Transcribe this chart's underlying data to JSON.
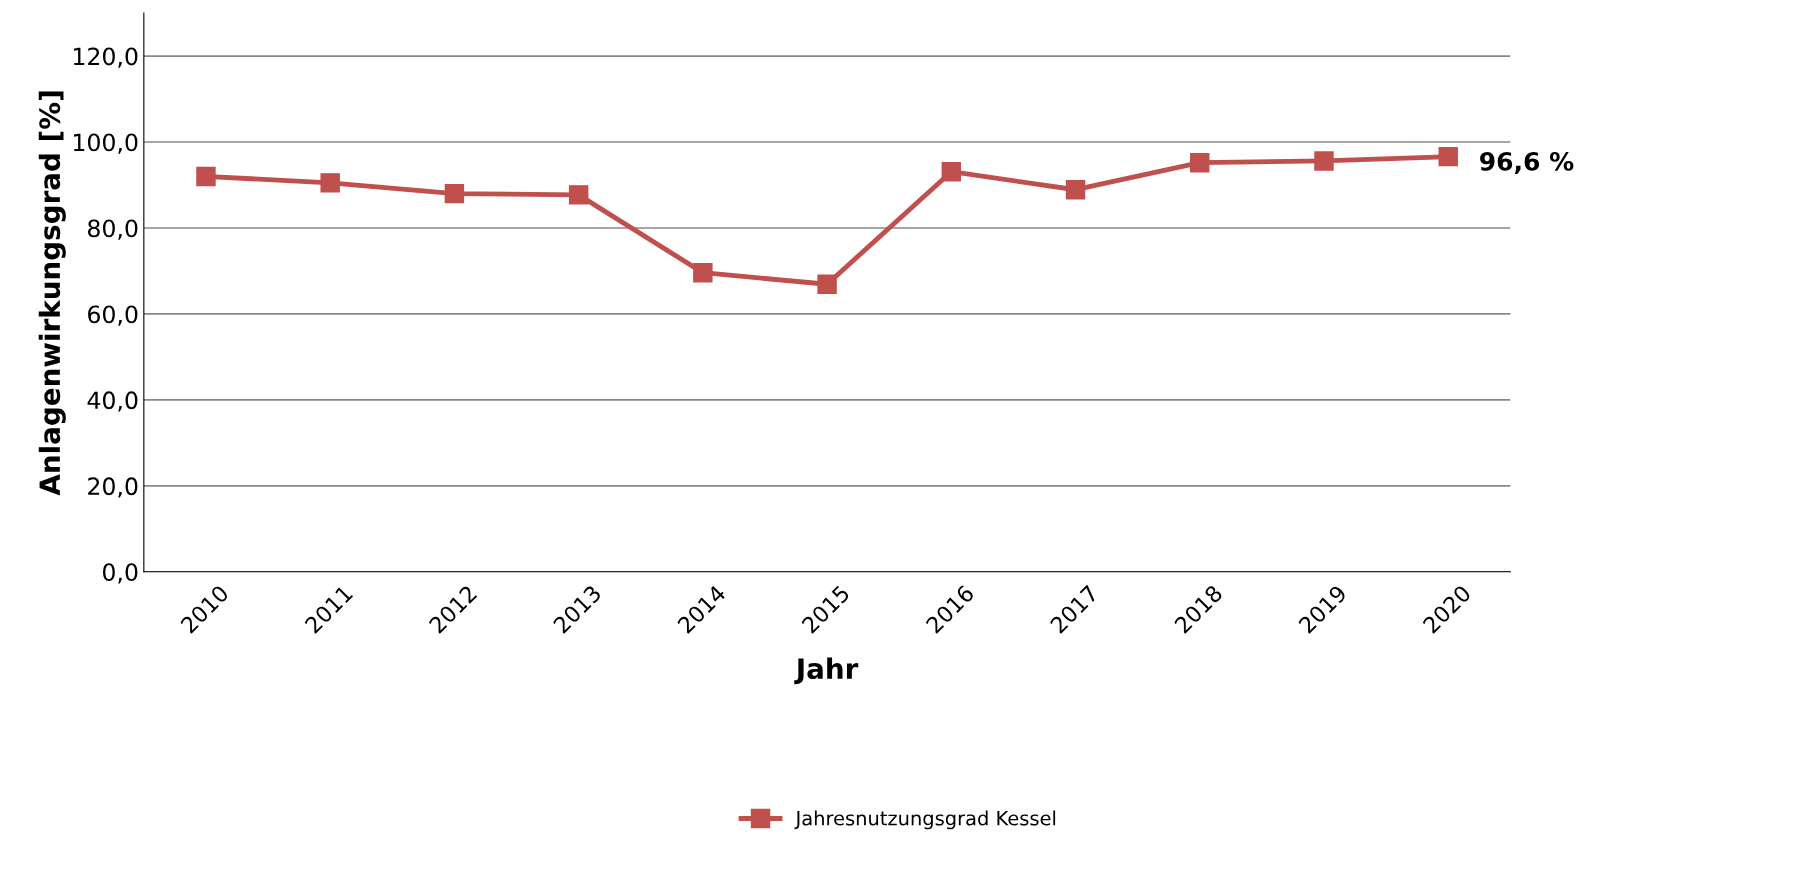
{
  "chart_data": {
    "type": "line",
    "xlabel": "Jahr",
    "ylabel": "Anlagenwirkungsgrad [%]",
    "categories": [
      "2010",
      "2011",
      "2012",
      "2013",
      "2014",
      "2015",
      "2016",
      "2017",
      "2018",
      "2019",
      "2020"
    ],
    "series": [
      {
        "name": "Jahresnutzungsgrad Kessel",
        "color": "#c0504d",
        "values": [
          92.0,
          90.5,
          88.0,
          87.7,
          69.6,
          66.9,
          93.1,
          88.9,
          95.2,
          95.6,
          96.6
        ],
        "value_labels": [
          null,
          null,
          null,
          null,
          null,
          null,
          null,
          null,
          null,
          null,
          "96,6 %"
        ]
      }
    ],
    "ylim": [
      0,
      130
    ],
    "yticks": [
      {
        "value": 0,
        "label": "0,0"
      },
      {
        "value": 20,
        "label": "20,0"
      },
      {
        "value": 40,
        "label": "40,0"
      },
      {
        "value": 60,
        "label": "60,0"
      },
      {
        "value": 80,
        "label": "80,0"
      },
      {
        "value": 100,
        "label": "100,0"
      },
      {
        "value": 120,
        "label": "120,0"
      }
    ],
    "grid": "y",
    "legend": "bottom",
    "marker": "square",
    "line_style": "solid"
  }
}
